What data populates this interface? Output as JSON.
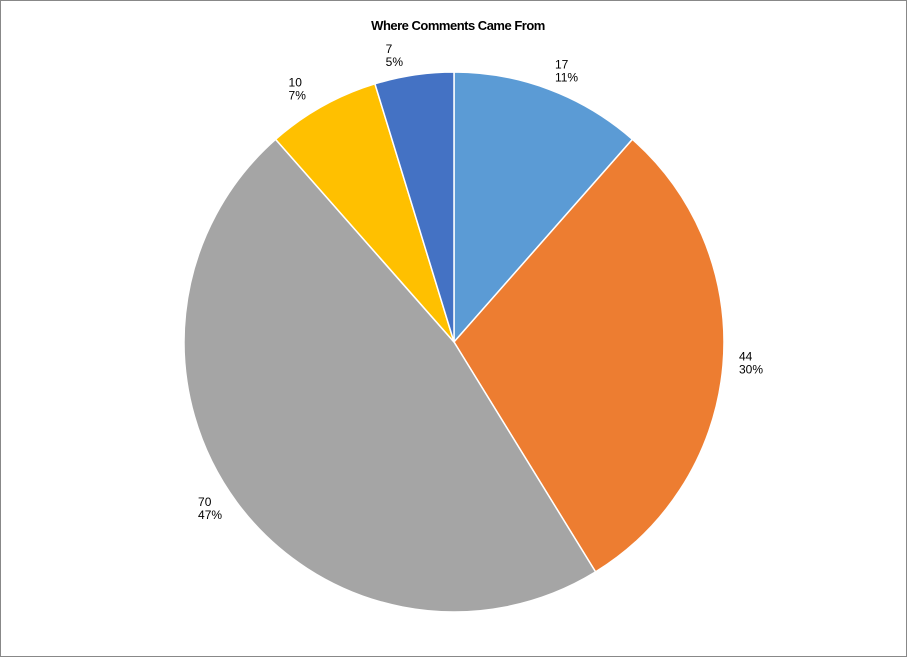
{
  "chart_data": {
    "type": "pie",
    "title": "Where Comments Came From",
    "categories": [
      null,
      null,
      null,
      null,
      null
    ],
    "values": [
      17,
      44,
      70,
      10,
      7
    ],
    "percent_labels": [
      "11%",
      "30%",
      "47%",
      "7%",
      "5%"
    ],
    "colors": [
      "#5b9bd5",
      "#ed7d31",
      "#a5a5a5",
      "#ffc000",
      "#4472c4"
    ]
  }
}
